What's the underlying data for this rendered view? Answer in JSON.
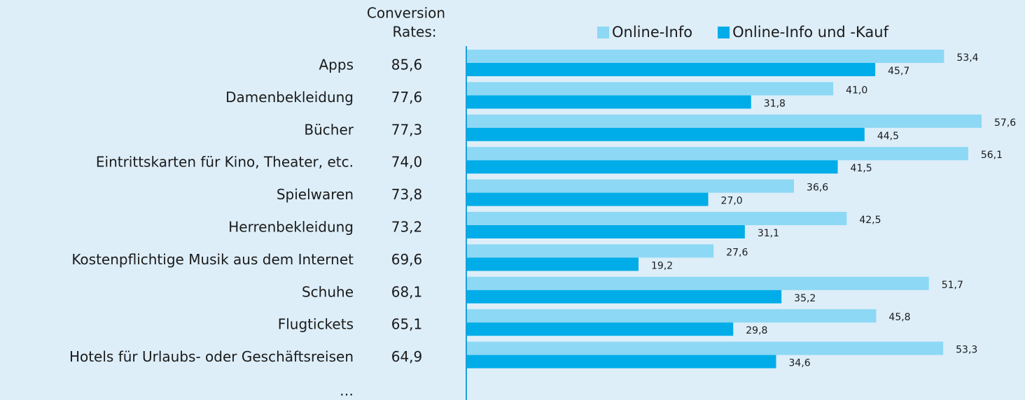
{
  "chart_data": {
    "type": "bar",
    "orientation": "horizontal",
    "column_title": [
      "Conversion",
      "Rates:"
    ],
    "categories": [
      "Apps",
      "Damenbekleidung",
      "Bücher",
      "Eintrittskarten für Kino, Theater, etc.",
      "Spielwaren",
      "Herrenbekleidung",
      "Kostenpflichtige Musik aus dem Internet",
      "Schuhe",
      "Flugtickets",
      "Hotels für Urlaubs- oder Geschäftsreisen"
    ],
    "conversion_rates": [
      85.6,
      77.6,
      77.3,
      74.0,
      73.8,
      73.2,
      69.6,
      68.1,
      65.1,
      64.9
    ],
    "conversion_rate_labels": [
      "85,6",
      "77,6",
      "77,3",
      "74,0",
      "73,8",
      "73,2",
      "69,6",
      "68,1",
      "65,1",
      "64,9"
    ],
    "more": "…",
    "legend": "top",
    "series": [
      {
        "name": "Online-Info",
        "color": "#8dd8f4",
        "values": [
          53.4,
          41.0,
          57.6,
          56.1,
          36.6,
          42.5,
          27.6,
          51.7,
          45.8,
          53.3
        ],
        "value_labels": [
          "53,4",
          "41,0",
          "57,6",
          "56,1",
          "36,6",
          "42,5",
          "27,6",
          "51,7",
          "45,8",
          "53,3"
        ]
      },
      {
        "name": "Online-Info und -Kauf",
        "color": "#00ade8",
        "values": [
          45.7,
          31.8,
          44.5,
          41.5,
          27.0,
          31.1,
          19.2,
          35.2,
          29.8,
          34.6
        ],
        "value_labels": [
          "45,7",
          "31,8",
          "44,5",
          "41,5",
          "27,0",
          "31,1",
          "19,2",
          "35,2",
          "29,8",
          "34,6"
        ]
      }
    ]
  }
}
